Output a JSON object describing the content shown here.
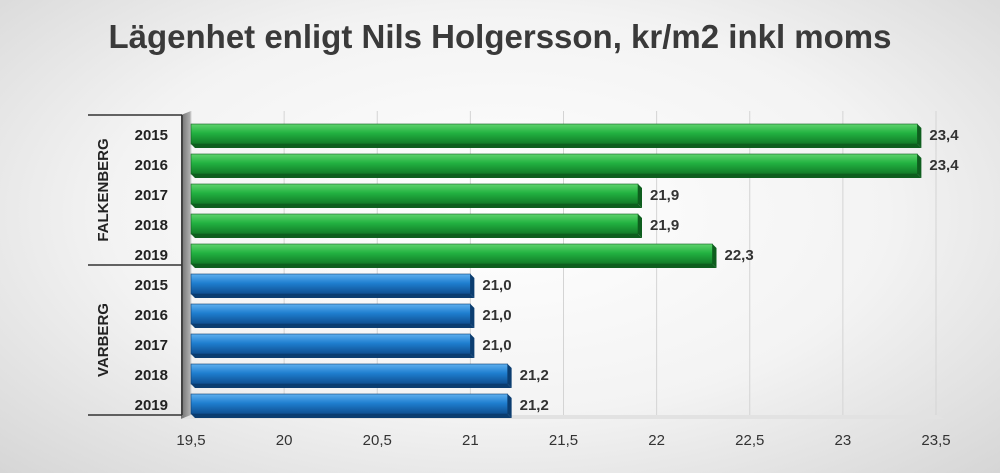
{
  "chart_data": {
    "type": "bar",
    "orientation": "horizontal",
    "title": "Lägenhet enligt Nils Holgersson, kr/m2 inkl moms",
    "xlim": [
      19.5,
      23.5
    ],
    "x_ticks": [
      "19,5",
      "20",
      "20,5",
      "21",
      "21,5",
      "22",
      "22,5",
      "23",
      "23,5"
    ],
    "x_tick_values": [
      19.5,
      20,
      20.5,
      21,
      21.5,
      22,
      22.5,
      23,
      23.5
    ],
    "grid": true,
    "legend": "none",
    "groups": [
      {
        "name": "FALKENBERG",
        "color": "#1fa33a",
        "categories": [
          "2015",
          "2016",
          "2017",
          "2018",
          "2019"
        ],
        "values": [
          23.4,
          23.4,
          21.9,
          21.9,
          22.3
        ],
        "labels": [
          "23,4",
          "23,4",
          "21,9",
          "21,9",
          "22,3"
        ]
      },
      {
        "name": "VARBERG",
        "color": "#1f78c8",
        "categories": [
          "2015",
          "2016",
          "2017",
          "2018",
          "2019"
        ],
        "values": [
          21.0,
          21.0,
          21.0,
          21.2,
          21.2
        ],
        "labels": [
          "21,0",
          "21,0",
          "21,0",
          "21,2",
          "21,2"
        ]
      }
    ]
  }
}
